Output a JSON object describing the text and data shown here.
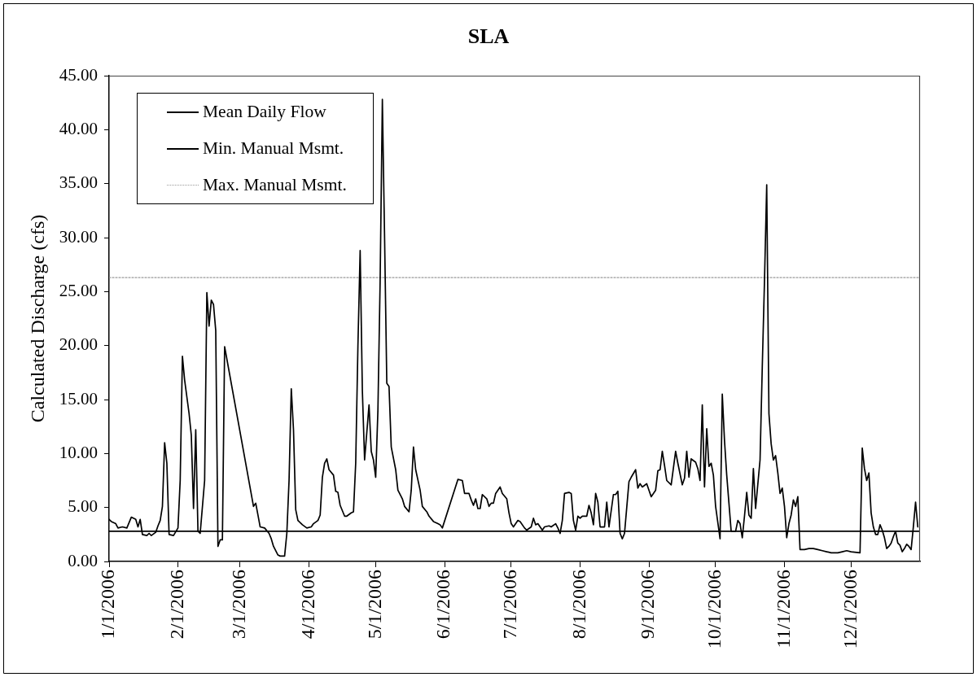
{
  "chart_data": {
    "type": "line",
    "title": "SLA",
    "ylabel": "Calculated Discharge (cfs)",
    "xlim": [
      "2006-01-01",
      "2007-01-01"
    ],
    "xticks": [
      {
        "value": "2006-01-01",
        "label": "1/1/2006"
      },
      {
        "value": "2006-02-01",
        "label": "2/1/2006"
      },
      {
        "value": "2006-03-01",
        "label": "3/1/2006"
      },
      {
        "value": "2006-04-01",
        "label": "4/1/2006"
      },
      {
        "value": "2006-05-01",
        "label": "5/1/2006"
      },
      {
        "value": "2006-06-01",
        "label": "6/1/2006"
      },
      {
        "value": "2006-07-01",
        "label": "7/1/2006"
      },
      {
        "value": "2006-08-01",
        "label": "8/1/2006"
      },
      {
        "value": "2006-09-01",
        "label": "9/1/2006"
      },
      {
        "value": "2006-10-01",
        "label": "10/1/2006"
      },
      {
        "value": "2006-11-01",
        "label": "11/1/2006"
      },
      {
        "value": "2006-12-01",
        "label": "12/1/2006"
      }
    ],
    "ylim": [
      0,
      45
    ],
    "yticks": [
      {
        "value": 0,
        "label": "0.00"
      },
      {
        "value": 5,
        "label": "5.00"
      },
      {
        "value": 10,
        "label": "10.00"
      },
      {
        "value": 15,
        "label": "15.00"
      },
      {
        "value": 20,
        "label": "20.00"
      },
      {
        "value": 25,
        "label": "25.00"
      },
      {
        "value": 30,
        "label": "30.00"
      },
      {
        "value": 35,
        "label": "35.00"
      },
      {
        "value": 40,
        "label": "40.00"
      },
      {
        "value": 45,
        "label": "45.00"
      }
    ],
    "legend": "top left",
    "series": [
      {
        "name": "Mean Daily Flow",
        "color": "#000000",
        "x": [
          "2006-01-01",
          "2006-01-02",
          "2006-01-04",
          "2006-01-05",
          "2006-01-07",
          "2006-01-09",
          "2006-01-11",
          "2006-01-13",
          "2006-01-14",
          "2006-01-15",
          "2006-01-16",
          "2006-01-18",
          "2006-01-19",
          "2006-01-20",
          "2006-01-22",
          "2006-01-23",
          "2006-01-24",
          "2006-01-25",
          "2006-01-26",
          "2006-01-27",
          "2006-01-28",
          "2006-01-30",
          "2006-02-01",
          "2006-02-02",
          "2006-02-03",
          "2006-02-04",
          "2006-02-06",
          "2006-02-07",
          "2006-02-08",
          "2006-02-09",
          "2006-02-10",
          "2006-02-11",
          "2006-02-13",
          "2006-02-14",
          "2006-02-15",
          "2006-02-16",
          "2006-02-17",
          "2006-02-18",
          "2006-02-19",
          "2006-02-20",
          "2006-02-21",
          "2006-02-22",
          "2006-03-07",
          "2006-03-08",
          "2006-03-09",
          "2006-03-10",
          "2006-03-12",
          "2006-03-14",
          "2006-03-15",
          "2006-03-16",
          "2006-03-18",
          "2006-03-19",
          "2006-03-21",
          "2006-03-22",
          "2006-03-23",
          "2006-03-24",
          "2006-03-25",
          "2006-03-26",
          "2006-03-27",
          "2006-03-29",
          "2006-03-31",
          "2006-04-02",
          "2006-04-03",
          "2006-04-05",
          "2006-04-06",
          "2006-04-07",
          "2006-04-08",
          "2006-04-09",
          "2006-04-10",
          "2006-04-12",
          "2006-04-13",
          "2006-04-14",
          "2006-04-15",
          "2006-04-17",
          "2006-04-18",
          "2006-04-20",
          "2006-04-21",
          "2006-04-22",
          "2006-04-23",
          "2006-04-24",
          "2006-04-25",
          "2006-04-26",
          "2006-04-28",
          "2006-04-29",
          "2006-04-30",
          "2006-05-01",
          "2006-05-02",
          "2006-05-03",
          "2006-05-04",
          "2006-05-05",
          "2006-05-06",
          "2006-05-07",
          "2006-05-08",
          "2006-05-10",
          "2006-05-11",
          "2006-05-13",
          "2006-05-14",
          "2006-05-16",
          "2006-05-17",
          "2006-05-18",
          "2006-05-19",
          "2006-05-21",
          "2006-05-22",
          "2006-05-24",
          "2006-05-25",
          "2006-05-27",
          "2006-05-29",
          "2006-05-30",
          "2006-05-31",
          "2006-06-07",
          "2006-06-09",
          "2006-06-10",
          "2006-06-12",
          "2006-06-13",
          "2006-06-14",
          "2006-06-15",
          "2006-06-16",
          "2006-06-17",
          "2006-06-18",
          "2006-06-20",
          "2006-06-21",
          "2006-06-22",
          "2006-06-23",
          "2006-06-24",
          "2006-06-26",
          "2006-06-27",
          "2006-06-29",
          "2006-06-30",
          "2006-07-01",
          "2006-07-02",
          "2006-07-04",
          "2006-07-05",
          "2006-07-07",
          "2006-07-08",
          "2006-07-10",
          "2006-07-11",
          "2006-07-12",
          "2006-07-13",
          "2006-07-15",
          "2006-07-16",
          "2006-07-18",
          "2006-07-19",
          "2006-07-21",
          "2006-07-22",
          "2006-07-23",
          "2006-07-24",
          "2006-07-25",
          "2006-07-27",
          "2006-07-28",
          "2006-07-29",
          "2006-07-30",
          "2006-07-31",
          "2006-08-01",
          "2006-08-02",
          "2006-08-04",
          "2006-08-05",
          "2006-08-06",
          "2006-08-07",
          "2006-08-08",
          "2006-08-09",
          "2006-08-10",
          "2006-08-12",
          "2006-08-13",
          "2006-08-14",
          "2006-08-16",
          "2006-08-17",
          "2006-08-18",
          "2006-08-19",
          "2006-08-20",
          "2006-08-21",
          "2006-08-23",
          "2006-08-24",
          "2006-08-26",
          "2006-08-27",
          "2006-08-28",
          "2006-08-29",
          "2006-08-31",
          "2006-09-01",
          "2006-09-02",
          "2006-09-04",
          "2006-09-05",
          "2006-09-06",
          "2006-09-07",
          "2006-09-08",
          "2006-09-09",
          "2006-09-11",
          "2006-09-13",
          "2006-09-14",
          "2006-09-16",
          "2006-09-17",
          "2006-09-18",
          "2006-09-19",
          "2006-09-20",
          "2006-09-22",
          "2006-09-23",
          "2006-09-24",
          "2006-09-25",
          "2006-09-26",
          "2006-09-27",
          "2006-09-28",
          "2006-09-29",
          "2006-09-30",
          "2006-10-01",
          "2006-10-03",
          "2006-10-04",
          "2006-10-05",
          "2006-10-06",
          "2006-10-07",
          "2006-10-08",
          "2006-10-10",
          "2006-10-11",
          "2006-10-12",
          "2006-10-13",
          "2006-10-14",
          "2006-10-15",
          "2006-10-16",
          "2006-10-17",
          "2006-10-18",
          "2006-10-19",
          "2006-10-21",
          "2006-10-22",
          "2006-10-23",
          "2006-10-24",
          "2006-10-25",
          "2006-10-26",
          "2006-10-27",
          "2006-10-28",
          "2006-10-29",
          "2006-10-30",
          "2006-10-31",
          "2006-11-01",
          "2006-11-02",
          "2006-11-03",
          "2006-11-04",
          "2006-11-05",
          "2006-11-06",
          "2006-11-07",
          "2006-11-08",
          "2006-11-10",
          "2006-11-12",
          "2006-11-14",
          "2006-11-16",
          "2006-11-18",
          "2006-11-20",
          "2006-11-22",
          "2006-11-25",
          "2006-11-27",
          "2006-11-29",
          "2006-12-01",
          "2006-12-05",
          "2006-12-06",
          "2006-12-07",
          "2006-12-08",
          "2006-12-09",
          "2006-12-10",
          "2006-12-11",
          "2006-12-12",
          "2006-12-13",
          "2006-12-14",
          "2006-12-15",
          "2006-12-16",
          "2006-12-17",
          "2006-12-18",
          "2006-12-19",
          "2006-12-20",
          "2006-12-21",
          "2006-12-22",
          "2006-12-23",
          "2006-12-24",
          "2006-12-25",
          "2006-12-26",
          "2006-12-27",
          "2006-12-28",
          "2006-12-29",
          "2006-12-30",
          "2006-12-31"
        ],
        "values": [
          3.9,
          3.7,
          3.5,
          3.1,
          3.2,
          3.1,
          4.1,
          3.9,
          3.2,
          3.9,
          2.5,
          2.4,
          2.6,
          2.4,
          2.7,
          3.3,
          3.8,
          5.1,
          11.0,
          9.1,
          2.5,
          2.4,
          3.1,
          7.5,
          19.0,
          16.8,
          13.7,
          11.7,
          4.9,
          12.2,
          2.8,
          2.6,
          7.5,
          24.9,
          21.8,
          24.2,
          23.8,
          21.4,
          1.4,
          2.0,
          2.0,
          19.9,
          5.1,
          5.4,
          4.3,
          3.2,
          3.1,
          2.6,
          2.1,
          1.4,
          0.6,
          0.5,
          0.5,
          2.6,
          7.5,
          16.0,
          12.2,
          4.8,
          3.8,
          3.4,
          3.1,
          3.2,
          3.5,
          3.8,
          4.3,
          7.8,
          9.1,
          9.5,
          8.5,
          8.0,
          6.5,
          6.4,
          5.2,
          4.2,
          4.2,
          4.5,
          4.6,
          9.1,
          20.0,
          28.8,
          15.8,
          9.4,
          14.5,
          10.2,
          9.4,
          7.8,
          14.0,
          26.0,
          42.8,
          30.0,
          16.5,
          16.2,
          10.6,
          8.5,
          6.6,
          5.8,
          5.1,
          4.6,
          6.6,
          10.6,
          8.5,
          6.6,
          5.1,
          4.6,
          4.2,
          3.7,
          3.5,
          3.4,
          3.1,
          7.6,
          7.5,
          6.3,
          6.3,
          5.7,
          5.2,
          5.8,
          4.9,
          4.9,
          6.2,
          5.8,
          5.1,
          5.4,
          5.4,
          6.3,
          6.9,
          6.3,
          5.8,
          4.5,
          3.5,
          3.2,
          3.8,
          3.7,
          3.1,
          2.9,
          3.2,
          4.0,
          3.4,
          3.5,
          2.9,
          3.2,
          3.3,
          3.2,
          3.5,
          3.1,
          2.6,
          3.8,
          6.3,
          6.4,
          6.3,
          3.8,
          2.9,
          4.2,
          4.0,
          4.2,
          4.2,
          5.2,
          4.5,
          3.4,
          6.3,
          5.5,
          3.2,
          3.2,
          5.5,
          3.2,
          6.2,
          6.2,
          6.5,
          2.6,
          2.1,
          2.6,
          7.4,
          7.8,
          8.5,
          6.8,
          7.2,
          6.9,
          7.2,
          6.6,
          6.0,
          6.6,
          8.4,
          8.5,
          10.2,
          8.9,
          7.5,
          7.1,
          10.2,
          9.1,
          7.1,
          7.7,
          10.2,
          7.8,
          9.5,
          9.2,
          8.6,
          7.5,
          14.5,
          6.9,
          12.3,
          8.8,
          9.1,
          8.0,
          5.1,
          2.1,
          15.5,
          11.2,
          8.0,
          5.4,
          2.8,
          2.8,
          3.8,
          3.5,
          2.2,
          4.2,
          6.4,
          4.3,
          4.0,
          8.6,
          4.9,
          9.4,
          18.0,
          26.0,
          34.9,
          13.7,
          10.9,
          9.4,
          9.8,
          8.2,
          6.3,
          6.8,
          5.1,
          2.2,
          3.5,
          4.3,
          5.7,
          5.1,
          6.0,
          1.1,
          1.1,
          1.2,
          1.2,
          1.1,
          1.0,
          0.9,
          0.8,
          0.8,
          0.9,
          1.0,
          0.9,
          0.8,
          10.5,
          8.6,
          7.5,
          8.2,
          4.5,
          3.2,
          2.5,
          2.5,
          3.4,
          2.9,
          2.2,
          1.2,
          1.4,
          1.7,
          2.3,
          2.8,
          1.7,
          1.5,
          0.9,
          1.2,
          1.6,
          1.4,
          1.1,
          3.2,
          5.5,
          3.2
        ]
      },
      {
        "name": "Min. Manual Msmt.",
        "color": "#000000",
        "x": [
          "2006-01-01",
          "2007-01-01"
        ],
        "values": [
          2.8,
          2.8
        ]
      },
      {
        "name": "Max. Manual Msmt.",
        "color": "#999999",
        "line_style": "dotted",
        "x": [
          "2006-01-01",
          "2007-01-01"
        ],
        "values": [
          26.3,
          26.3
        ]
      }
    ]
  }
}
